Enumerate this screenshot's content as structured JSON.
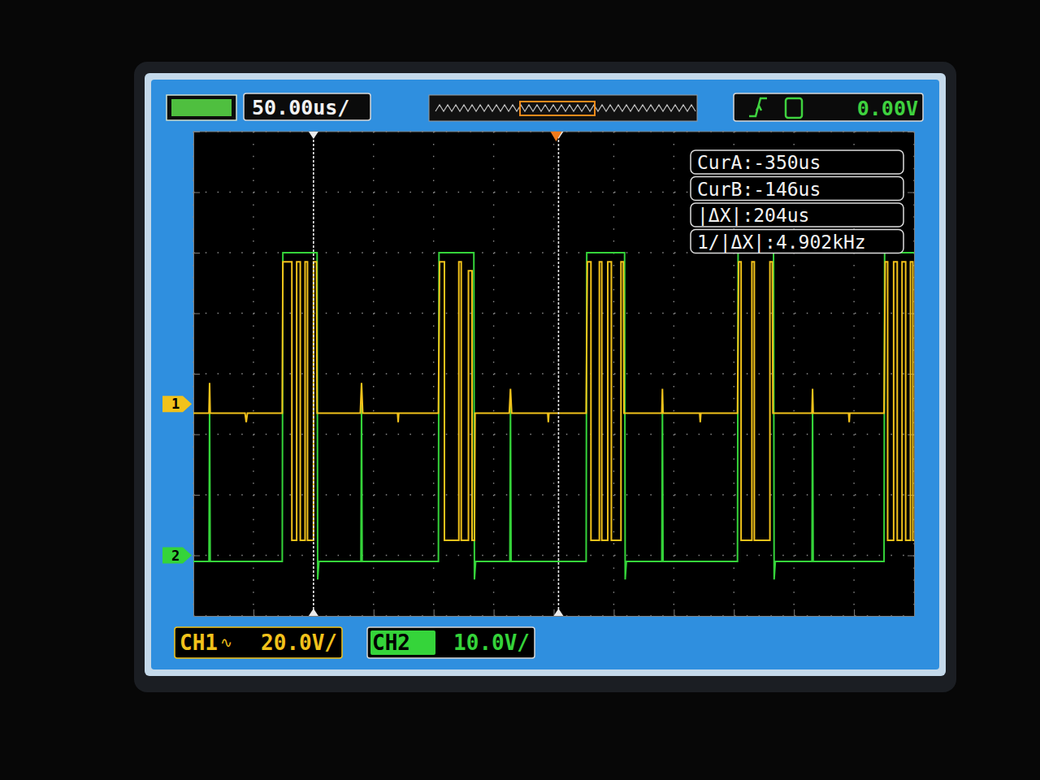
{
  "chart_data": {
    "type": "line",
    "timebase": "50.00us/",
    "trigger_level": "0.00V",
    "xlim": [
      -450,
      150
    ],
    "xticks": [
      -450,
      -400,
      -350,
      -300,
      -250,
      -200,
      -150,
      -100,
      -50,
      0,
      50,
      100,
      150
    ],
    "ylim": [
      -70,
      90
    ],
    "yticks": [
      -70,
      -50,
      -30,
      -10,
      10,
      30,
      50,
      70,
      90
    ],
    "y2lim": [
      -10,
      70
    ],
    "y2ticks": [
      -10,
      0,
      10,
      20,
      30,
      40,
      50,
      60,
      70
    ],
    "grid": true,
    "tick_labels": false,
    "trigger_position": -148,
    "cursors": [
      {
        "label": "CurA:-350us",
        "value": -350
      },
      {
        "label": "CurB:-146us",
        "value": -146
      }
    ],
    "annotations": [
      "|ΔX|:204us",
      "1/|ΔX|:4.902kHz"
    ],
    "series": [
      {
        "name": "CH1",
        "coupling": "∿",
        "scale_label": "20.0V/",
        "ground_label": "1",
        "color": "#f2c21b",
        "x": [
          -450,
          -437,
          -436.5,
          -436,
          -407,
          -406,
          -405,
          -376,
          -375.5,
          -368,
          -368,
          -364,
          -364,
          -361,
          -361,
          -357,
          -357,
          -355,
          -355,
          -350,
          -350,
          -347.5,
          -347,
          -311,
          -310,
          -309,
          -280,
          -279.5,
          -279,
          -246,
          -245,
          -241,
          -241,
          -229,
          -229,
          -227,
          -227,
          -221,
          -221,
          -218,
          -218,
          -216,
          -215.5,
          -187,
          -186,
          -185,
          -155,
          -154.5,
          -154,
          -123,
          -122,
          -119,
          -119,
          -112,
          -112,
          -110,
          -110,
          -105,
          -105,
          -102,
          -102,
          -94,
          -94,
          -92,
          -91.5,
          -60,
          -59.5,
          -59,
          -28.5,
          -28,
          -27.5,
          3,
          4,
          6,
          6,
          15,
          15,
          17,
          17,
          30,
          30,
          32,
          32.5,
          65,
          65.5,
          66,
          95.5,
          96,
          96.5,
          125,
          126,
          128,
          128,
          133,
          133,
          136,
          136,
          140,
          140,
          143,
          143,
          147,
          147,
          149,
          149,
          150
        ],
        "values": [
          -3,
          -3,
          7,
          -3,
          -3,
          -6,
          -3,
          -3,
          47,
          47,
          -45,
          -45,
          47,
          47,
          -45,
          -45,
          47,
          47,
          -45,
          -45,
          47,
          47,
          -3,
          -3,
          7,
          -3,
          -3,
          -6,
          -3,
          -3,
          47,
          47,
          -45,
          -45,
          47,
          47,
          -45,
          -45,
          44,
          44,
          -45,
          -45,
          -3,
          -3,
          5,
          -3,
          -3,
          -6,
          -3,
          -3,
          47,
          47,
          -45,
          -45,
          47,
          47,
          -45,
          -45,
          47,
          47,
          -45,
          -45,
          47,
          47,
          -3,
          -3,
          5,
          -3,
          -3,
          -6,
          -3,
          -3,
          47,
          47,
          -45,
          -45,
          47,
          47,
          -45,
          -45,
          47,
          47,
          -3,
          -3,
          5,
          -3,
          -3,
          -6,
          -3,
          -3,
          47,
          47,
          -45,
          -45,
          47,
          47,
          -45,
          -45,
          47,
          47,
          -45,
          -45,
          47,
          47,
          -45,
          -45
        ]
      },
      {
        "name": "CH2",
        "scale_label": "10.0V/",
        "ground_label": "2",
        "color": "#35d43a",
        "axis": "y2",
        "x": [
          -450,
          -437,
          -436.5,
          -436,
          -376,
          -375.5,
          -347,
          -346.5,
          -345.5,
          -310.5,
          -310,
          -309.5,
          -246,
          -245.5,
          -216.5,
          -216,
          -215,
          -186.5,
          -186,
          -185.5,
          -123,
          -122.5,
          -91,
          -90.5,
          -89.5,
          -60,
          -59.5,
          -59,
          3,
          3.5,
          33,
          33.5,
          34.5,
          65,
          65.5,
          66,
          125,
          125.5,
          150
        ],
        "values": [
          -1,
          -1,
          25,
          -1,
          -1,
          50,
          50,
          -4,
          -1,
          -1,
          25,
          -1,
          -1,
          50,
          50,
          -4,
          -1,
          -1,
          25,
          -1,
          -1,
          50,
          50,
          -4,
          -1,
          -1,
          25,
          -1,
          -1,
          50,
          50,
          -4,
          -1,
          -1,
          25,
          -1,
          -1,
          50,
          50
        ]
      }
    ]
  }
}
